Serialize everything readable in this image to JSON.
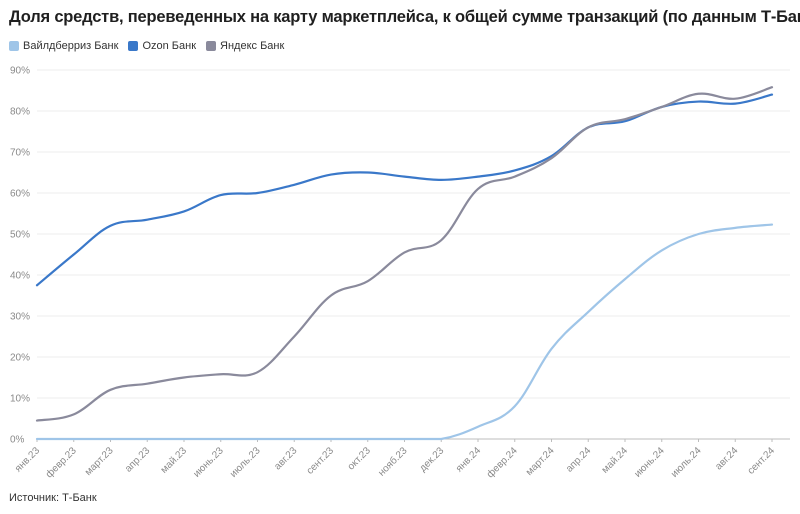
{
  "title": "Доля средств, переведенных на карту маркетплейса, к общей сумме транзакций (по данным Т-Банка)",
  "source": "Источник: Т-Банк",
  "chart_data": {
    "type": "line",
    "title": "Доля средств, переведенных на карту маркетплейса, к общей сумме транзакций (по данным Т-Банка)",
    "categories": [
      "янв.23",
      "февр.23",
      "март.23",
      "апр.23",
      "май.23",
      "июнь.23",
      "июль.23",
      "авг.23",
      "сент.23",
      "окт.23",
      "нояб.23",
      "дек.23",
      "янв.24",
      "февр.24",
      "март.24",
      "апр.24",
      "май.24",
      "июнь.24",
      "июль.24",
      "авг.24",
      "сент.24"
    ],
    "y_ticks": [
      "0%",
      "10%",
      "20%",
      "30%",
      "40%",
      "50%",
      "60%",
      "70%",
      "80%",
      "90%"
    ],
    "ylim": [
      0,
      90
    ],
    "grid": true,
    "legend_position": "top-left",
    "series": [
      {
        "name": "Вайлдберриз Банк",
        "color": "#9fc5e8",
        "values": [
          0,
          0,
          0,
          0,
          0,
          0,
          0,
          0,
          0,
          0,
          0,
          0,
          3,
          8,
          22,
          31,
          39,
          46,
          50,
          51.5,
          52.3
        ]
      },
      {
        "name": "Ozon Банк",
        "color": "#3a78c9",
        "values": [
          37.5,
          45,
          52,
          53.5,
          55.5,
          59.5,
          60,
          62,
          64.5,
          65,
          64,
          63.2,
          64,
          65.5,
          69,
          76,
          77.5,
          81,
          82.3,
          81.8,
          84
        ]
      },
      {
        "name": "Яндекс Банк",
        "color": "#8a8a9c",
        "values": [
          4.5,
          6,
          12,
          13.5,
          15,
          15.8,
          16.3,
          25,
          35,
          38.5,
          45.5,
          48.5,
          61,
          64,
          68.5,
          76,
          78,
          81,
          84.2,
          83,
          85.8
        ]
      }
    ]
  }
}
